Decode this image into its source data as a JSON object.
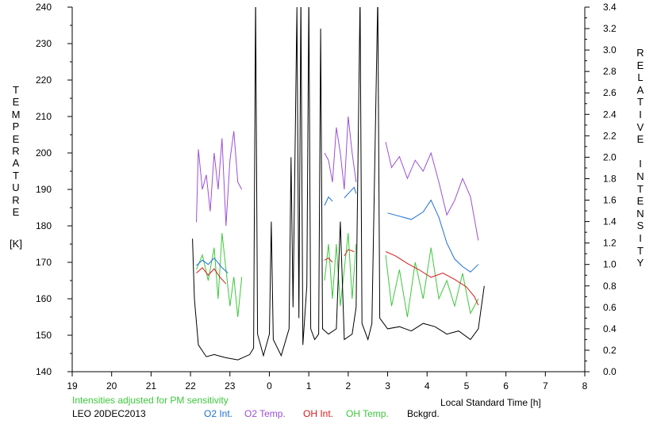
{
  "chart_data": {
    "type": "line",
    "left_axis_label": "TEMPERATURE",
    "left_axis_unit": "[K]",
    "right_axis_label": "RELATIVE INTENSITY",
    "xlabel": "Local Standard Time [h]",
    "note": "Intensities adjusted for PM sensitivity",
    "station_date": "LEO 20DEC2013",
    "x_ticks": [
      "19",
      "20",
      "21",
      "22",
      "23",
      "0",
      "1",
      "2",
      "3",
      "4",
      "5",
      "6",
      "7",
      "8"
    ],
    "y_left_ticks": [
      "140",
      "150",
      "160",
      "170",
      "180",
      "190",
      "200",
      "210",
      "220",
      "230",
      "240"
    ],
    "y_right_ticks": [
      "0.0",
      "0.2",
      "0.4",
      "0.6",
      "0.8",
      "1.0",
      "1.2",
      "1.4",
      "1.6",
      "1.8",
      "2.0",
      "2.2",
      "2.4",
      "2.6",
      "2.8",
      "3.0",
      "3.2",
      "3.4"
    ],
    "xlim": [
      19,
      32
    ],
    "ylim_left": [
      140,
      240
    ],
    "ylim_right": [
      0,
      3.4
    ],
    "series": [
      {
        "name": "O2 Int.",
        "color": "#1f6fd6",
        "axis": "right",
        "segments": [
          [
            [
              22.15,
              0.99
            ],
            [
              22.3,
              1.04
            ],
            [
              22.45,
              1.0
            ],
            [
              22.6,
              1.06
            ],
            [
              22.8,
              0.97
            ],
            [
              22.95,
              0.92
            ]
          ],
          [
            [
              25.4,
              1.55
            ],
            [
              25.5,
              1.63
            ],
            [
              25.6,
              1.59
            ]
          ],
          [
            [
              25.9,
              1.62
            ],
            [
              26.05,
              1.68
            ],
            [
              26.15,
              1.72
            ],
            [
              26.2,
              1.66
            ]
          ],
          [
            [
              27.0,
              1.48
            ],
            [
              27.3,
              1.45
            ],
            [
              27.6,
              1.42
            ],
            [
              27.9,
              1.49
            ],
            [
              28.1,
              1.6
            ],
            [
              28.3,
              1.44
            ],
            [
              28.5,
              1.2
            ],
            [
              28.7,
              1.05
            ],
            [
              28.9,
              0.98
            ],
            [
              29.1,
              0.93
            ],
            [
              29.3,
              1.0
            ]
          ]
        ]
      },
      {
        "name": "O2 Temp.",
        "color": "#9b4fd6",
        "axis": "left",
        "segments": [
          [
            [
              22.15,
              181
            ],
            [
              22.2,
              201
            ],
            [
              22.3,
              190
            ],
            [
              22.4,
              194
            ],
            [
              22.5,
              184
            ],
            [
              22.6,
              200
            ],
            [
              22.7,
              190
            ],
            [
              22.8,
              204
            ],
            [
              22.9,
              180
            ],
            [
              23.0,
              198
            ],
            [
              23.1,
              206
            ],
            [
              23.2,
              192
            ],
            [
              23.3,
              190
            ]
          ],
          [
            [
              25.4,
              200
            ],
            [
              25.5,
              198
            ],
            [
              25.6,
              192
            ],
            [
              25.7,
              207
            ],
            [
              25.8,
              200
            ],
            [
              25.9,
              190
            ],
            [
              26.0,
              210
            ],
            [
              26.1,
              200
            ],
            [
              26.2,
              192
            ]
          ],
          [
            [
              26.95,
              203
            ],
            [
              27.1,
              196
            ],
            [
              27.3,
              199
            ],
            [
              27.5,
              193
            ],
            [
              27.7,
              198
            ],
            [
              27.9,
              195
            ],
            [
              28.1,
              200
            ],
            [
              28.3,
              192
            ],
            [
              28.5,
              183
            ],
            [
              28.7,
              187
            ],
            [
              28.9,
              193
            ],
            [
              29.1,
              188
            ],
            [
              29.3,
              176
            ]
          ]
        ]
      },
      {
        "name": "OH Int.",
        "color": "#d61b1b",
        "axis": "right",
        "segments": [
          [
            [
              22.15,
              0.92
            ],
            [
              22.3,
              0.97
            ],
            [
              22.45,
              0.9
            ],
            [
              22.6,
              0.96
            ],
            [
              22.75,
              0.88
            ],
            [
              22.9,
              0.82
            ]
          ],
          [
            [
              25.4,
              1.04
            ],
            [
              25.5,
              1.06
            ],
            [
              25.6,
              1.02
            ]
          ],
          [
            [
              25.9,
              1.08
            ],
            [
              26.0,
              1.14
            ],
            [
              26.15,
              1.12
            ]
          ],
          [
            [
              26.95,
              1.12
            ],
            [
              27.2,
              1.08
            ],
            [
              27.5,
              1.01
            ],
            [
              27.8,
              0.95
            ],
            [
              28.1,
              0.88
            ],
            [
              28.4,
              0.92
            ],
            [
              28.7,
              0.86
            ],
            [
              29.0,
              0.79
            ],
            [
              29.2,
              0.7
            ],
            [
              29.3,
              0.62
            ]
          ]
        ]
      },
      {
        "name": "OH Temp.",
        "color": "#3cc83c",
        "axis": "left",
        "segments": [
          [
            [
              22.15,
              168
            ],
            [
              22.3,
              172
            ],
            [
              22.45,
              165
            ],
            [
              22.6,
              174
            ],
            [
              22.7,
              160
            ],
            [
              22.8,
              178
            ],
            [
              22.9,
              168
            ],
            [
              23.0,
              158
            ],
            [
              23.1,
              166
            ],
            [
              23.2,
              155
            ],
            [
              23.3,
              166
            ]
          ],
          [
            [
              25.4,
              165
            ],
            [
              25.5,
              175
            ],
            [
              25.6,
              160
            ],
            [
              25.7,
              175
            ],
            [
              25.8,
              158
            ],
            [
              25.9,
              168
            ],
            [
              26.0,
              178
            ],
            [
              26.1,
              160
            ],
            [
              26.2,
              175
            ]
          ],
          [
            [
              26.95,
              172
            ],
            [
              27.1,
              158
            ],
            [
              27.3,
              168
            ],
            [
              27.5,
              155
            ],
            [
              27.7,
              170
            ],
            [
              27.9,
              160
            ],
            [
              28.1,
              174
            ],
            [
              28.3,
              160
            ],
            [
              28.5,
              165
            ],
            [
              28.7,
              158
            ],
            [
              28.9,
              167
            ],
            [
              29.1,
              156
            ],
            [
              29.3,
              160
            ]
          ]
        ]
      },
      {
        "name": "Bckgrd.",
        "color": "#000000",
        "axis": "right",
        "segments": [
          [
            [
              22.05,
              1.24
            ],
            [
              22.1,
              0.68
            ],
            [
              22.2,
              0.25
            ],
            [
              22.4,
              0.14
            ],
            [
              22.6,
              0.16
            ],
            [
              22.9,
              0.13
            ],
            [
              23.2,
              0.11
            ],
            [
              23.5,
              0.16
            ],
            [
              23.6,
              0.22
            ],
            [
              23.65,
              3.5
            ],
            [
              23.7,
              0.35
            ],
            [
              23.85,
              0.15
            ],
            [
              24.0,
              0.35
            ],
            [
              24.05,
              1.4
            ],
            [
              24.1,
              0.3
            ],
            [
              24.3,
              0.15
            ],
            [
              24.5,
              0.4
            ],
            [
              24.55,
              2.0
            ],
            [
              24.6,
              0.6
            ],
            [
              24.7,
              3.4
            ],
            [
              24.75,
              0.5
            ],
            [
              24.8,
              3.5
            ],
            [
              24.85,
              0.25
            ],
            [
              24.95,
              0.8
            ],
            [
              25.0,
              3.5
            ],
            [
              25.05,
              0.4
            ],
            [
              25.15,
              0.3
            ],
            [
              25.25,
              0.35
            ],
            [
              25.3,
              3.2
            ],
            [
              25.35,
              0.4
            ],
            [
              25.5,
              0.35
            ],
            [
              25.7,
              0.4
            ],
            [
              25.8,
              1.4
            ],
            [
              25.9,
              0.3
            ],
            [
              26.1,
              0.35
            ],
            [
              26.2,
              0.6
            ],
            [
              26.3,
              3.5
            ],
            [
              26.35,
              0.45
            ],
            [
              26.5,
              0.3
            ],
            [
              26.6,
              0.45
            ],
            [
              26.75,
              3.5
            ],
            [
              26.8,
              0.5
            ],
            [
              27.0,
              0.4
            ],
            [
              27.3,
              0.42
            ],
            [
              27.6,
              0.38
            ],
            [
              27.9,
              0.45
            ],
            [
              28.2,
              0.42
            ],
            [
              28.5,
              0.35
            ],
            [
              28.8,
              0.38
            ],
            [
              29.1,
              0.3
            ],
            [
              29.3,
              0.4
            ],
            [
              29.45,
              0.8
            ]
          ]
        ]
      }
    ]
  }
}
